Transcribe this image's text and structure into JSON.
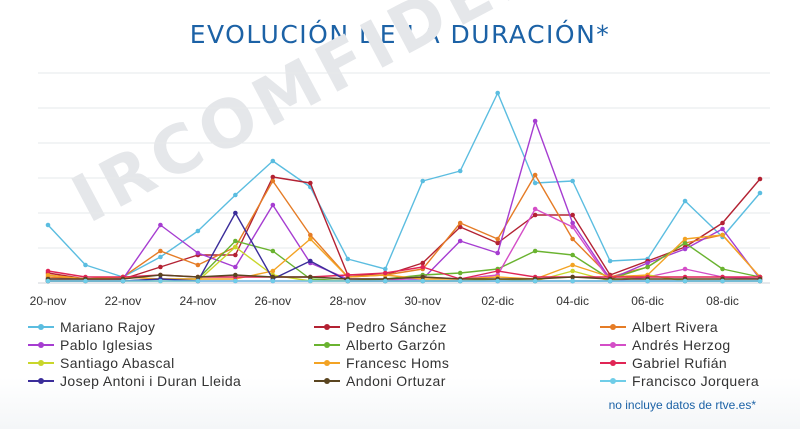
{
  "title": "EVOLUCIÓN DE LA DURACIÓN*",
  "watermark": "IRCOMFIDENCIAL",
  "footnote": "no incluye datos de rtve.es*",
  "chart_data": {
    "type": "line",
    "title": "EVOLUCIÓN DE LA DURACIÓN*",
    "xlabel": "",
    "ylabel": "",
    "grid": true,
    "legend_position": "bottom",
    "x_tick_labels": [
      "20-nov",
      "22-nov",
      "24-nov",
      "26-nov",
      "28-nov",
      "30-nov",
      "02-dic",
      "04-dic",
      "06-dic",
      "08-dic"
    ],
    "x": [
      "20-nov",
      "21-nov",
      "22-nov",
      "23-nov",
      "24-nov",
      "25-nov",
      "26-nov",
      "27-nov",
      "28-nov",
      "29-nov",
      "30-nov",
      "01-dic",
      "02-dic",
      "03-dic",
      "04-dic",
      "05-dic",
      "06-dic",
      "07-dic",
      "08-dic",
      "09-dic"
    ],
    "ylim": [
      0,
      105
    ],
    "series": [
      {
        "name": "Mariano Rajoy",
        "color": "#5bbde0",
        "values": [
          29,
          9,
          3,
          13,
          26,
          44,
          61,
          48,
          12,
          7,
          51,
          56,
          95,
          50,
          51,
          11,
          12,
          41,
          23,
          45
        ]
      },
      {
        "name": "Pedro Sánchez",
        "color": "#b32233",
        "values": [
          5,
          2,
          2,
          8,
          14,
          14,
          53,
          50,
          4,
          4,
          10,
          28,
          20,
          34,
          34,
          4,
          11,
          18,
          30,
          52
        ]
      },
      {
        "name": "Albert Rivera",
        "color": "#e57c26",
        "values": [
          3,
          2,
          3,
          16,
          9,
          18,
          51,
          24,
          3,
          4,
          7,
          30,
          22,
          54,
          22,
          3,
          8,
          20,
          24,
          3
        ]
      },
      {
        "name": "Pablo Iglesias",
        "color": "#a63dd1",
        "values": [
          2,
          2,
          2,
          29,
          15,
          8,
          39,
          10,
          2,
          2,
          2,
          21,
          15,
          81,
          30,
          2,
          10,
          17,
          27,
          2
        ]
      },
      {
        "name": "Alberto Garzón",
        "color": "#6ab330",
        "values": [
          1,
          1,
          1,
          2,
          2,
          21,
          16,
          2,
          1,
          2,
          4,
          5,
          7,
          16,
          14,
          2,
          8,
          20,
          7,
          3
        ]
      },
      {
        "name": "Andrés Herzog",
        "color": "#d44ec7",
        "values": [
          1,
          1,
          1,
          1,
          1,
          1,
          1,
          1,
          1,
          1,
          3,
          2,
          4,
          37,
          28,
          1,
          3,
          7,
          3,
          2
        ]
      },
      {
        "name": "Santiago Abascal",
        "color": "#c9d62b",
        "values": [
          1,
          1,
          1,
          1,
          1,
          18,
          4,
          1,
          1,
          1,
          1,
          1,
          2,
          1,
          6,
          1,
          4,
          1,
          1,
          1
        ]
      },
      {
        "name": "Francesc Homs",
        "color": "#f3a324",
        "values": [
          4,
          2,
          3,
          2,
          2,
          2,
          6,
          22,
          3,
          4,
          2,
          2,
          3,
          2,
          9,
          3,
          4,
          22,
          24,
          3
        ]
      },
      {
        "name": "Gabriel Rufián",
        "color": "#e02555",
        "values": [
          6,
          3,
          3,
          4,
          3,
          3,
          3,
          3,
          4,
          5,
          8,
          2,
          6,
          3,
          3,
          3,
          3,
          3,
          3,
          3
        ]
      },
      {
        "name": "Josep Antoni i Duran Lleida",
        "color": "#3b2d9a",
        "values": [
          1,
          1,
          1,
          2,
          1,
          35,
          2,
          11,
          1,
          1,
          1,
          1,
          1,
          1,
          1,
          1,
          1,
          1,
          1,
          1
        ]
      },
      {
        "name": "Andoni Ortuzar",
        "color": "#5a4520",
        "values": [
          2,
          2,
          2,
          4,
          3,
          4,
          3,
          3,
          2,
          2,
          3,
          2,
          2,
          2,
          3,
          2,
          2,
          2,
          2,
          2
        ]
      },
      {
        "name": "Francisco Jorquera",
        "color": "#6fcde8",
        "values": [
          1,
          1,
          1,
          1,
          1,
          1,
          1,
          1,
          1,
          1,
          1,
          1,
          1,
          1,
          1,
          1,
          1,
          1,
          1,
          1
        ]
      }
    ]
  }
}
